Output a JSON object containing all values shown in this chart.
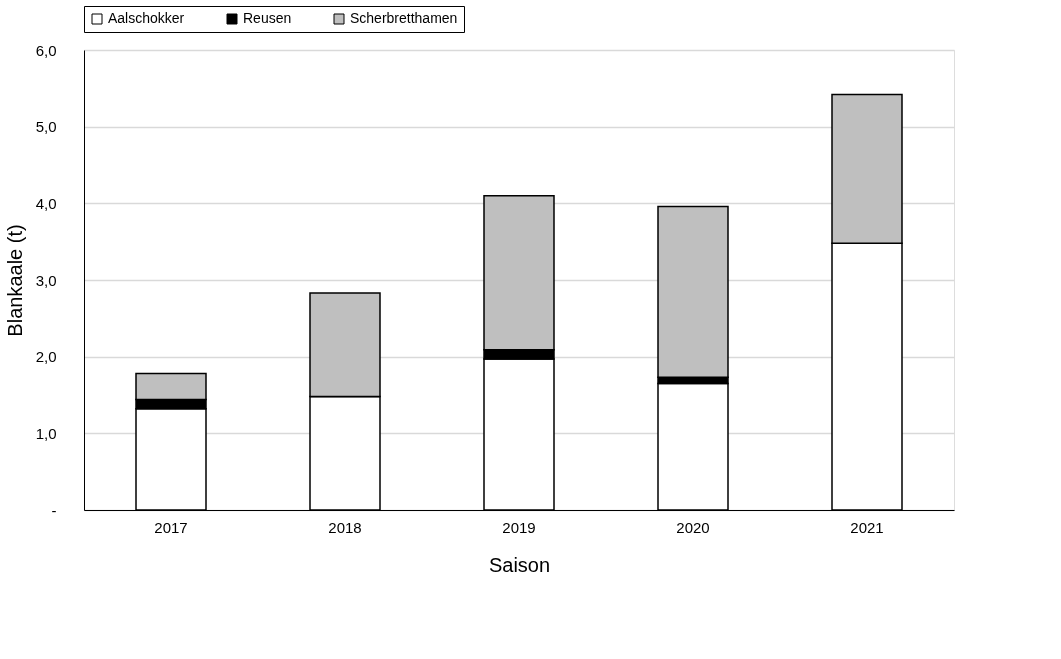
{
  "chart_data": {
    "type": "bar",
    "stacked": true,
    "xlabel": "Saison",
    "ylabel": "Blankaale (t)",
    "categories": [
      "2017",
      "2018",
      "2019",
      "2020",
      "2021"
    ],
    "series": [
      {
        "name": "Aalschokker",
        "color": "#ffffff",
        "values": [
          1.32,
          1.48,
          1.97,
          1.65,
          3.48
        ]
      },
      {
        "name": "Reusen",
        "color": "#000000",
        "values": [
          0.12,
          0,
          0.12,
          0.08,
          0
        ]
      },
      {
        "name": "Scherbretthamen",
        "color": "#bfbfbf",
        "values": [
          0.34,
          1.35,
          2.01,
          2.23,
          1.94
        ]
      }
    ],
    "ylim": [
      0,
      6
    ],
    "yticks": [
      {
        "value": 0,
        "label": "-"
      },
      {
        "value": 1,
        "label": "1,0"
      },
      {
        "value": 2,
        "label": "2,0"
      },
      {
        "value": 3,
        "label": "3,0"
      },
      {
        "value": 4,
        "label": "4,0"
      },
      {
        "value": 5,
        "label": "5,0"
      },
      {
        "value": 6,
        "label": "6,0"
      }
    ],
    "grid": "y",
    "legend": "top"
  }
}
